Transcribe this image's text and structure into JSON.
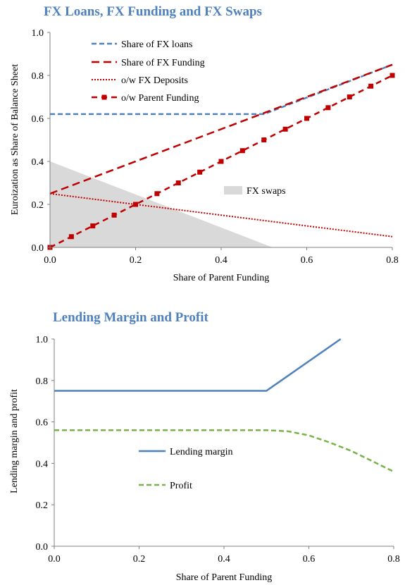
{
  "chart_data": [
    {
      "type": "line",
      "title": "FX Loans, FX Funding and FX Swaps",
      "xlabel": "Share of Parent Funding",
      "ylabel": "Euroization  as Share of Balance Sheet",
      "xlim": [
        0,
        0.8
      ],
      "ylim": [
        0,
        1.0
      ],
      "xticks": [
        "0.0",
        "0.2",
        "0.4",
        "0.6",
        "0.8"
      ],
      "yticks": [
        "0.0",
        "0.2",
        "0.4",
        "0.6",
        "0.8",
        "1.0"
      ],
      "grid": false,
      "legend_position": "top-left",
      "series": [
        {
          "name": "Share of FX loans",
          "color": "#4f81bd",
          "style": "dashed",
          "x": [
            0,
            0.5,
            0.8
          ],
          "y": [
            0.62,
            0.62,
            0.85
          ]
        },
        {
          "name": "Share of FX Funding",
          "color": "#c00000",
          "style": "long-dashed",
          "x": [
            0,
            0.8
          ],
          "y": [
            0.25,
            0.85
          ]
        },
        {
          "name": "o/w FX Deposits",
          "color": "#c00000",
          "style": "dotted",
          "x": [
            0,
            0.2,
            0.4,
            0.6,
            0.8
          ],
          "y": [
            0.25,
            0.2,
            0.15,
            0.1,
            0.05
          ]
        },
        {
          "name": "o/w Parent Funding",
          "color": "#c00000",
          "style": "dashed-square-markers",
          "x": [
            0,
            0.05,
            0.1,
            0.15,
            0.2,
            0.25,
            0.3,
            0.35,
            0.4,
            0.45,
            0.5,
            0.55,
            0.6,
            0.65,
            0.7,
            0.75,
            0.8
          ],
          "y": [
            0,
            0.05,
            0.1,
            0.15,
            0.2,
            0.25,
            0.3,
            0.35,
            0.4,
            0.45,
            0.5,
            0.55,
            0.6,
            0.65,
            0.7,
            0.75,
            0.8
          ]
        }
      ],
      "area": {
        "name": "FX swaps",
        "color": "#d9d9d9",
        "x": [
          0,
          0.52
        ],
        "y": [
          0.4,
          0.0
        ]
      }
    },
    {
      "type": "line",
      "title": "Lending Margin and Profit",
      "xlabel": "Share of Parent Funding",
      "ylabel": "Lending  margin  and profit",
      "xlim": [
        0,
        0.8
      ],
      "ylim": [
        0,
        1.0
      ],
      "xticks": [
        "0.0",
        "0.2",
        "0.4",
        "0.6",
        "0.8"
      ],
      "yticks": [
        "0.0",
        "0.2",
        "0.4",
        "0.6",
        "0.8",
        "1.0"
      ],
      "grid": false,
      "legend_position": "center-left",
      "series": [
        {
          "name": "Lending margin",
          "color": "#4f81bd",
          "style": "solid",
          "x": [
            0,
            0.5,
            0.675
          ],
          "y": [
            0.75,
            0.75,
            1.0
          ]
        },
        {
          "name": "Profit",
          "color": "#77b347",
          "style": "dashed",
          "x": [
            0,
            0.45,
            0.5,
            0.55,
            0.6,
            0.65,
            0.7,
            0.75,
            0.8
          ],
          "y": [
            0.56,
            0.56,
            0.56,
            0.555,
            0.535,
            0.5,
            0.46,
            0.41,
            0.36
          ]
        }
      ]
    }
  ]
}
